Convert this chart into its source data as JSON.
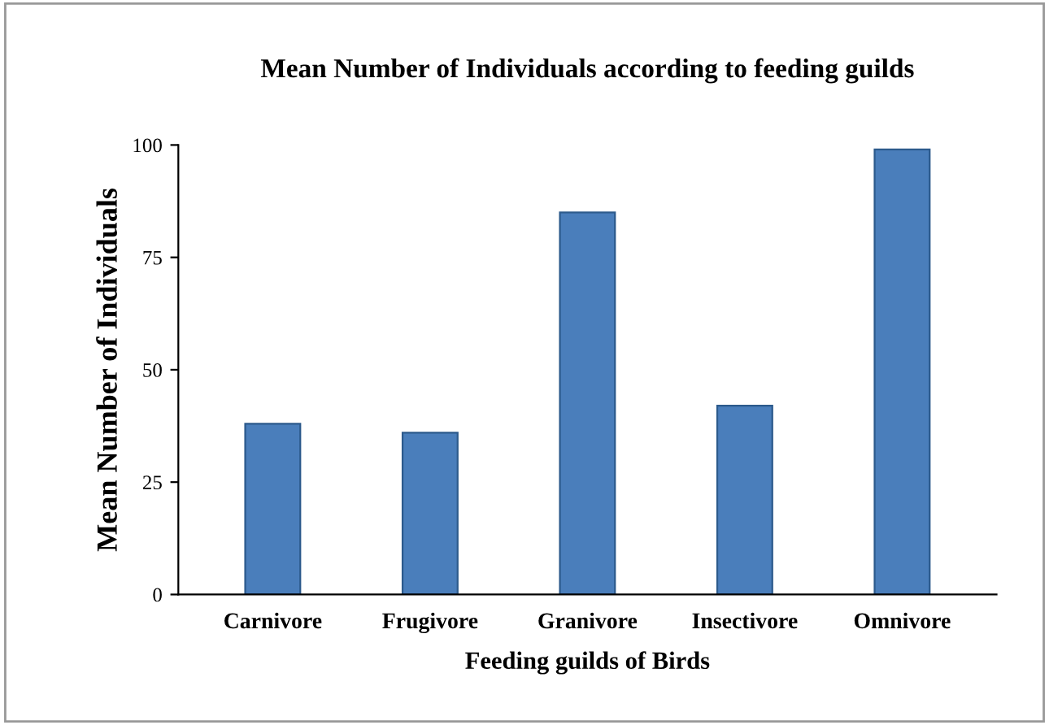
{
  "chart_data": {
    "type": "bar",
    "title": "Mean Number of Individuals according to feeding guilds",
    "xlabel": "Feeding guilds of Birds",
    "ylabel": "Mean Number of Individuals",
    "categories": [
      "Carnivore",
      "Frugivore",
      "Granivore",
      "Insectivore",
      "Omnivore"
    ],
    "values": [
      38,
      36,
      85,
      42,
      99
    ],
    "color": "#4a7ebb",
    "ylim": [
      0,
      100
    ],
    "yticks": [
      0,
      25,
      50,
      75,
      100
    ],
    "grid": false
  }
}
